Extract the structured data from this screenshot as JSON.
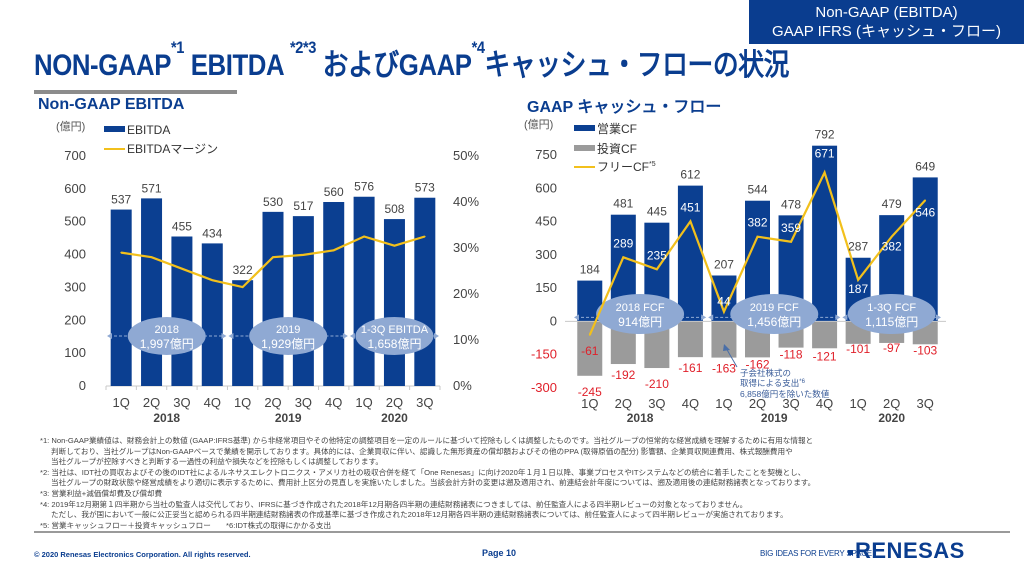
{
  "header": {
    "tag_line1": "Non-GAAP (EBITDA)",
    "tag_line2": "GAAP IFRS (キャッシュ・フロー)",
    "title_part1": "NON-GAAP",
    "title_sup1": "*1",
    "title_part2": " EBITDA ",
    "title_sup2": "*2*3",
    "title_part3": " およびGAAP",
    "title_sup3": "*4",
    "title_part4": "キャッシュ・フローの状況"
  },
  "colors": {
    "brand_blue": "#0a3d8f",
    "bar_blue": "#0b3f91",
    "bar_gray": "#9b9b9b",
    "line_yellow": "#f2c01c",
    "negative_red": "#e0202a",
    "bubble": "#8fa9d3"
  },
  "chart_data": [
    {
      "type": "bar",
      "title": "Non-GAAP EBITDA",
      "unit_label": "(億円)",
      "categories": [
        "1Q",
        "2Q",
        "3Q",
        "4Q",
        "1Q",
        "2Q",
        "3Q",
        "4Q",
        "1Q",
        "2Q",
        "3Q"
      ],
      "year_groups": [
        {
          "label": "2018",
          "count": 4
        },
        {
          "label": "2019",
          "count": 4
        },
        {
          "label": "2020",
          "count": 3
        }
      ],
      "series": [
        {
          "name": "EBITDA",
          "kind": "bar",
          "axis": "left",
          "values": [
            537,
            571,
            455,
            434,
            322,
            530,
            517,
            560,
            576,
            508,
            573
          ]
        },
        {
          "name": "EBITDAマージン",
          "kind": "line",
          "axis": "right",
          "values": [
            29,
            28,
            25.5,
            23,
            21.5,
            28,
            28.5,
            29.5,
            32.5,
            30.5,
            32.5
          ]
        }
      ],
      "ylim_left": [
        0,
        700
      ],
      "yticks_left": [
        "0",
        "100",
        "200",
        "300",
        "400",
        "500",
        "600",
        "700"
      ],
      "ylim_right": [
        0,
        50
      ],
      "yticks_right": [
        "0%",
        "10%",
        "20%",
        "30%",
        "40%",
        "50%"
      ],
      "annotations": [
        {
          "line1": "2018",
          "line2": "1,997億円",
          "from": 0,
          "to": 3
        },
        {
          "line1": "2019",
          "line2": "1,929億円",
          "from": 4,
          "to": 7
        },
        {
          "line1": "1-3Q EBITDA",
          "line2": "1,658億円",
          "from": 8,
          "to": 10
        }
      ],
      "legend": "top-left"
    },
    {
      "type": "bar",
      "title": "GAAP キャッシュ・フロー",
      "unit_label": "(億円)",
      "categories": [
        "1Q",
        "2Q",
        "3Q",
        "4Q",
        "1Q",
        "2Q",
        "3Q",
        "4Q",
        "1Q",
        "2Q",
        "3Q"
      ],
      "year_groups": [
        {
          "label": "2018",
          "count": 4
        },
        {
          "label": "2019",
          "count": 4
        },
        {
          "label": "2020",
          "count": 3
        }
      ],
      "series": [
        {
          "name": "営業CF",
          "kind": "bar",
          "values": [
            184,
            481,
            445,
            612,
            207,
            544,
            478,
            792,
            287,
            479,
            649
          ]
        },
        {
          "name": "投資CF",
          "kind": "bar",
          "values": [
            -245,
            -192,
            -210,
            -161,
            -163,
            -162,
            -118,
            -121,
            -101,
            -97,
            -103
          ]
        },
        {
          "name": "フリーCF",
          "name_sup": "*5",
          "kind": "line",
          "values": [
            -61,
            289,
            235,
            451,
            44,
            382,
            359,
            671,
            187,
            382,
            546
          ]
        }
      ],
      "ylim": [
        -300,
        750
      ],
      "yticks": [
        "-300",
        "-150",
        "0",
        "150",
        "300",
        "450",
        "600",
        "750"
      ],
      "annotations": [
        {
          "line1": "2018 FCF",
          "line2": "914億円",
          "from": 0,
          "to": 3
        },
        {
          "line1": "2019 FCF",
          "line2": "1,456億円",
          "from": 4,
          "to": 7
        },
        {
          "line1": "1-3Q FCF",
          "line2": "1,115億円",
          "from": 8,
          "to": 10
        }
      ],
      "callout": {
        "line1": "子会社株式の",
        "line2": "取得による支出",
        "sup": "*6",
        "line3": "6,858億円を除いた数値"
      },
      "legend": "top-left"
    }
  ],
  "footnotes": [
    {
      "text": "*1: Non-GAAP業績値は、財務会計上の数値 (GAAP:IFRS基準) から非経常項目やその他特定の調整項目を一定のルールに基づいて控除もしくは調整したものです。当社グループの恒常的な経営成績を理解するために有用な情報と",
      "cont": false
    },
    {
      "text": "判断しており、当社グループはNon-GAAPベースで業績を開示しております。具体的には、企業買収に伴い、認識した無形資産の償却額およびその他のPPA (取得原価の配分) 影響額、企業買収関連費用、株式報酬費用や",
      "cont": true
    },
    {
      "text": "当社グループが控除すべきと判断する一過性の利益や損失などを控除もしくは調整しております。",
      "cont": true
    },
    {
      "text": "*2: 当社は、IDT社の買収およびその後のIDT社によるルネサスエレクトロニクス・アメリカ社の吸収合併を経て「One Renesas」に向け2020年１月１日以降、事業プロセスやITシステムなどの統合に着手したことを契機とし、",
      "cont": false
    },
    {
      "text": "当社グループの財政状態や経営成績をより適切に表示するために、費用計上区分の見直しを実施いたしました。当該会計方針の変更は遡及適用され、前連結会計年度については、遡及適用後の連結財務諸表となっております。",
      "cont": true
    },
    {
      "text": "*3: 営業利益+減価償却費及び償却費",
      "cont": false
    },
    {
      "text": "*4: 2019年12月期第１四半期から当社の監査人は交代しており、IFRSに基づき作成された2018年12月期各四半期の連結財務諸表につきましては、前任監査人による四半期レビューの対象となっておりません。",
      "cont": false
    },
    {
      "text": "ただし、我が国において一般に公正妥当と認められる四半期連結財務諸表の作成基準に基づき作成された2018年12月期各四半期の連結財務諸表については、前任監査人によって四半期レビューが実施されております。",
      "cont": true
    },
    {
      "text": "*5: 営業キャッシュフロー＋投資キャッシュフロー　　*6:IDT株式の取得にかかる支出",
      "cont": false
    }
  ],
  "footer": {
    "copyright": "© 2020 Renesas Electronics Corporation. All rights reserved.",
    "page": "Page 10",
    "slogan": "BIG IDEAS FOR EVERY SPACE",
    "logo_text": "RENESAS"
  }
}
